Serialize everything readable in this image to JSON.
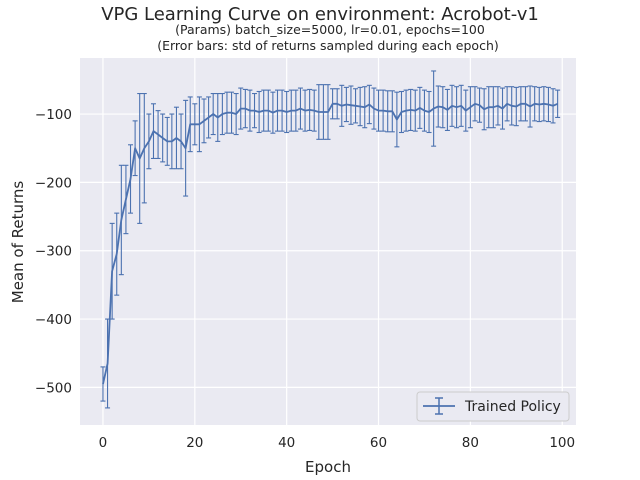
{
  "chart_data": {
    "type": "line",
    "title": "VPG Learning Curve on environment: Acrobot-v1",
    "subtitle_lines": [
      "(Params) batch_size=5000, lr=0.01, epochs=100",
      "(Error bars: std of returns sampled during each epoch)"
    ],
    "xlabel": "Epoch",
    "ylabel": "Mean of Returns",
    "xlim": [
      -5,
      103
    ],
    "ylim": [
      -555,
      -18
    ],
    "xticks": [
      0,
      20,
      40,
      60,
      80,
      100
    ],
    "yticks": [
      -500,
      -400,
      -300,
      -200,
      -100
    ],
    "xtick_labels": [
      "0",
      "20",
      "40",
      "60",
      "80",
      "100"
    ],
    "ytick_labels": [
      "−500",
      "−400",
      "−300",
      "−200",
      "−100"
    ],
    "grid": true,
    "legend_position": "bottom-right",
    "colors": {
      "background": "#eaeaf2",
      "grid": "#ffffff",
      "line": "#4c72b0",
      "text": "#262626"
    },
    "series": [
      {
        "name": "Trained Policy",
        "x": [
          0,
          1,
          2,
          3,
          4,
          5,
          6,
          7,
          8,
          9,
          10,
          11,
          12,
          13,
          14,
          15,
          16,
          17,
          18,
          19,
          20,
          21,
          22,
          23,
          24,
          25,
          26,
          27,
          28,
          29,
          30,
          31,
          32,
          33,
          34,
          35,
          36,
          37,
          38,
          39,
          40,
          41,
          42,
          43,
          44,
          45,
          46,
          47,
          48,
          49,
          50,
          51,
          52,
          53,
          54,
          55,
          56,
          57,
          58,
          59,
          60,
          61,
          62,
          63,
          64,
          65,
          66,
          67,
          68,
          69,
          70,
          71,
          72,
          73,
          74,
          75,
          76,
          77,
          78,
          79,
          80,
          81,
          82,
          83,
          84,
          85,
          86,
          87,
          88,
          89,
          90,
          91,
          92,
          93,
          94,
          95,
          96,
          97,
          98,
          99
        ],
        "y": [
          -495,
          -465,
          -330,
          -305,
          -255,
          -225,
          -195,
          -150,
          -165,
          -150,
          -140,
          -125,
          -130,
          -135,
          -140,
          -140,
          -135,
          -140,
          -150,
          -115,
          -115,
          -115,
          -110,
          -105,
          -100,
          -105,
          -100,
          -98,
          -98,
          -100,
          -92,
          -92,
          -95,
          -95,
          -97,
          -95,
          -95,
          -98,
          -95,
          -95,
          -97,
          -95,
          -95,
          -92,
          -95,
          -94,
          -95,
          -97,
          -97,
          -97,
          -85,
          -85,
          -88,
          -86,
          -87,
          -88,
          -89,
          -90,
          -86,
          -92,
          -95,
          -95,
          -96,
          -96,
          -108,
          -97,
          -95,
          -94,
          -95,
          -91,
          -95,
          -97,
          -92,
          -89,
          -90,
          -94,
          -88,
          -90,
          -88,
          -95,
          -90,
          -85,
          -87,
          -93,
          -90,
          -90,
          -88,
          -92,
          -85,
          -88,
          -89,
          -85,
          -85,
          -89,
          -85,
          -86,
          -85,
          -86,
          -88,
          -85
        ],
        "error": [
          25,
          65,
          70,
          60,
          80,
          50,
          50,
          40,
          95,
          80,
          40,
          40,
          35,
          35,
          35,
          40,
          45,
          40,
          70,
          40,
          30,
          40,
          32,
          30,
          30,
          35,
          30,
          30,
          30,
          30,
          30,
          28,
          30,
          25,
          30,
          30,
          30,
          30,
          30,
          30,
          30,
          30,
          30,
          30,
          30,
          30,
          30,
          40,
          40,
          40,
          22,
          22,
          30,
          25,
          28,
          25,
          28,
          30,
          28,
          30,
          30,
          30,
          30,
          30,
          40,
          30,
          30,
          30,
          30,
          30,
          30,
          30,
          55,
          30,
          30,
          30,
          30,
          30,
          30,
          30,
          30,
          25,
          25,
          30,
          30,
          30,
          28,
          30,
          25,
          28,
          28,
          25,
          25,
          30,
          25,
          25,
          25,
          25,
          25,
          20
        ]
      }
    ]
  }
}
